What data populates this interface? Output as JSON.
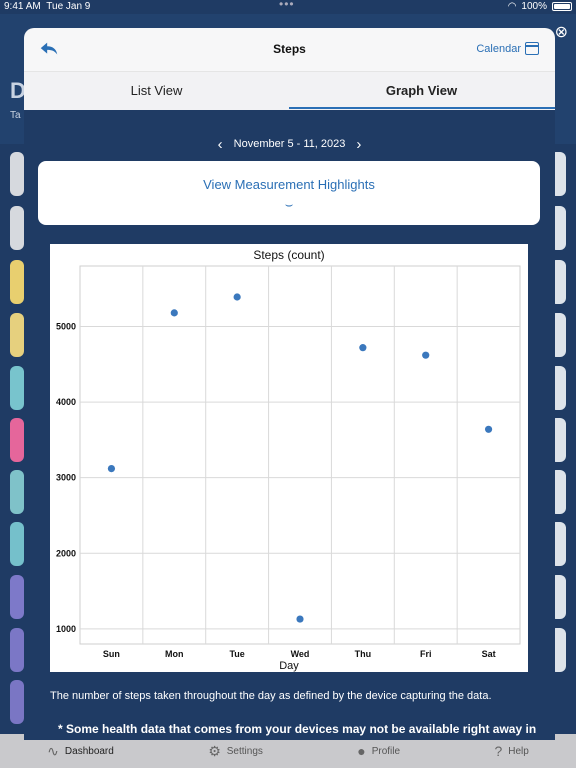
{
  "status_bar": {
    "time": "9:41 AM",
    "date": "Tue Jan 9",
    "battery": "100%"
  },
  "background": {
    "header_letter": "D",
    "header_sub": "Ta",
    "tab_bar": [
      {
        "label": "Dashboard",
        "icon": "pulse-icon"
      },
      {
        "label": "Settings",
        "icon": "gear-icon"
      },
      {
        "label": "Profile",
        "icon": "person-icon"
      },
      {
        "label": "Help",
        "icon": "question-icon"
      }
    ]
  },
  "modal": {
    "title": "Steps",
    "calendar_label": "Calendar",
    "segments": {
      "list": "List View",
      "graph": "Graph View",
      "selected": "graph"
    },
    "date_range": "November 5 - 11, 2023",
    "highlights_label": "View Measurement Highlights",
    "description": "The number of steps taken throughout the day as defined by the device capturing the data.",
    "note": "* Some health data that comes from your devices may not be available right away in"
  },
  "chart_data": {
    "type": "scatter",
    "title": "Steps (count)",
    "xlabel": "Day",
    "ylabel": "",
    "categories": [
      "Sun",
      "Mon",
      "Tue",
      "Wed",
      "Thu",
      "Fri",
      "Sat"
    ],
    "values": [
      3120,
      5180,
      5390,
      1130,
      4720,
      4620,
      3640
    ],
    "yticks": [
      1000,
      2000,
      3000,
      4000,
      5000
    ],
    "ylim": [
      800,
      5800
    ],
    "grid": true,
    "point_color": "#3b78bd"
  }
}
